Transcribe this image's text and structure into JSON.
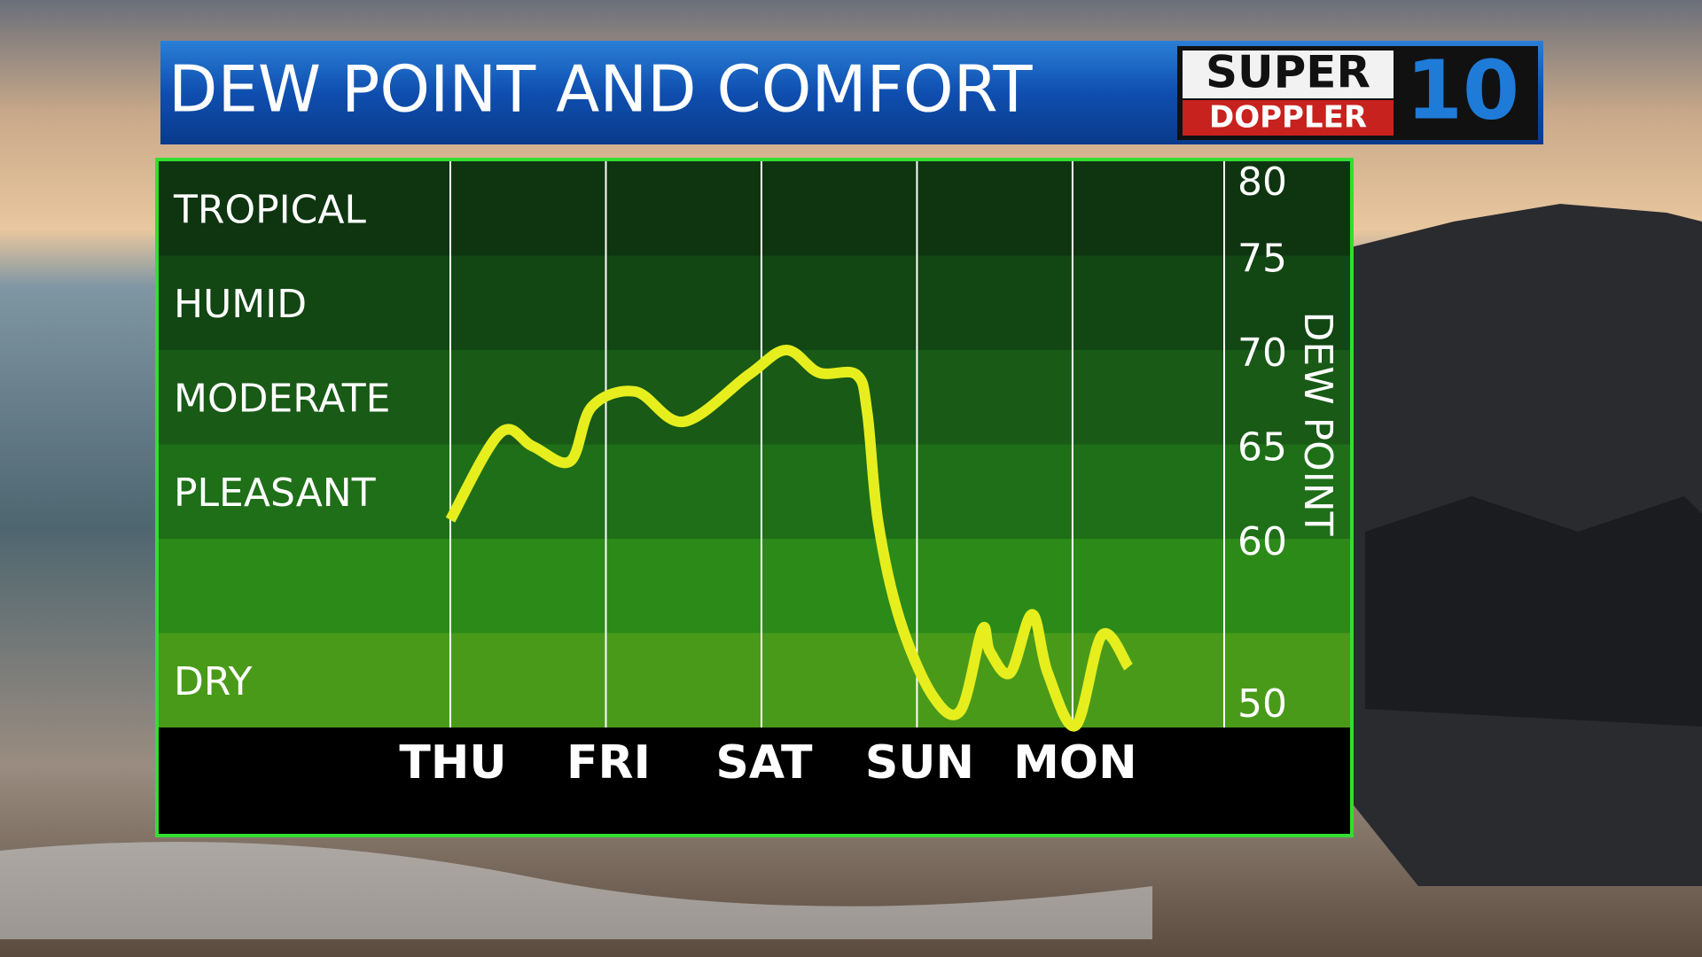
{
  "header": {
    "logo": {
      "line1": "SUPER",
      "line2": "DOPPLER",
      "mark": "10"
    }
  },
  "chart_data": {
    "type": "line",
    "title": "DEW POINT AND COMFORT",
    "y_label": "DEW POINT",
    "xlim": [
      -1.875,
      4.975
    ],
    "xticks": [
      {
        "value": 0,
        "label": "THU"
      },
      {
        "value": 1,
        "label": "FRI"
      },
      {
        "value": 2,
        "label": "SAT"
      },
      {
        "value": 3,
        "label": "SUN"
      },
      {
        "value": 4,
        "label": "MON"
      }
    ],
    "ylim": [
      50,
      80
    ],
    "yticks": [
      50,
      60,
      65,
      70,
      75,
      80
    ],
    "zones": [
      {
        "label": "TROPICAL",
        "from": 75,
        "to": 80,
        "color": "#0e3510"
      },
      {
        "label": "HUMID",
        "from": 70,
        "to": 75,
        "color": "#124613"
      },
      {
        "label": "MODERATE",
        "from": 65,
        "to": 70,
        "color": "#185a16"
      },
      {
        "label": "PLEASANT",
        "from": 60,
        "to": 65,
        "color": "#1e6f18"
      },
      {
        "label": null,
        "from": 55,
        "to": 60,
        "color": "#2b8a18"
      },
      {
        "label": "DRY",
        "from": 50,
        "to": 55,
        "color": "#4a9a1a"
      }
    ],
    "series": [
      {
        "color": "#e6ee1e",
        "x": [
          0,
          0.32,
          0.53,
          0.77,
          0.91,
          1.19,
          1.5,
          1.92,
          2.16,
          2.37,
          2.61,
          2.68,
          2.75,
          2.89,
          3.1,
          3.28,
          3.42,
          3.47,
          3.6,
          3.74,
          3.84,
          4.02,
          4.19,
          4.36
        ],
        "values": [
          61.0,
          65.6,
          64.9,
          64.1,
          67.0,
          67.8,
          66.2,
          68.7,
          70.0,
          68.8,
          68.7,
          66.7,
          60.9,
          55.7,
          51.7,
          50.9,
          55.2,
          54.0,
          52.9,
          56.0,
          52.9,
          50.1,
          54.9,
          53.2
        ]
      }
    ]
  }
}
